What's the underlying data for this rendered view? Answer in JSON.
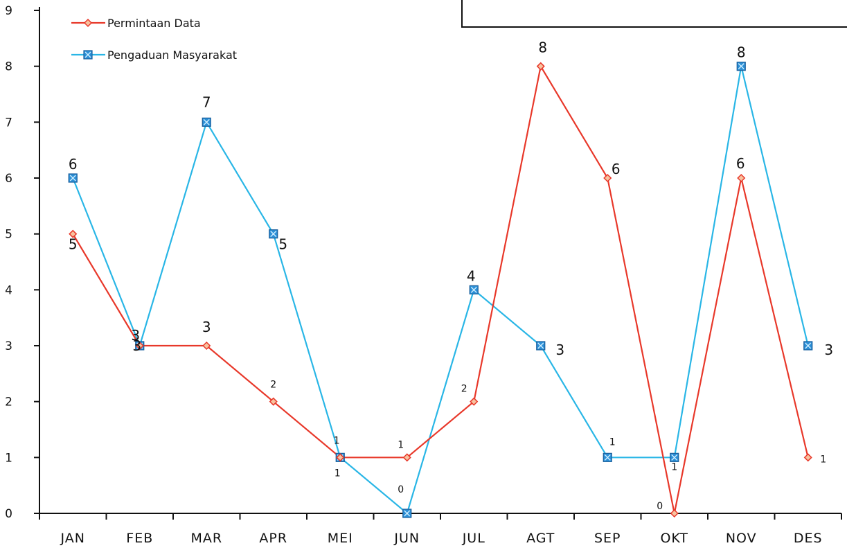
{
  "chart_data": {
    "type": "line",
    "categories": [
      "JAN",
      "FEB",
      "MAR",
      "APR",
      "MEI",
      "JUN",
      "JUL",
      "AGT",
      "SEP",
      "OKT",
      "NOV",
      "DES"
    ],
    "ylim": [
      0,
      9
    ],
    "yticks": [
      "0",
      "1",
      "2",
      "3",
      "4",
      "5",
      "6",
      "7",
      "8",
      "9"
    ],
    "grid": false,
    "legend_position": "top-left",
    "series": [
      {
        "name": "Permintaan Data",
        "color": "#e8382a",
        "marker": "diamond",
        "values": [
          5,
          3,
          3,
          2,
          1,
          1,
          2,
          8,
          6,
          0,
          6,
          1
        ],
        "labels": [
          "5",
          "3",
          "3",
          "2",
          "1",
          "1",
          "2",
          "8",
          "6",
          "0",
          "6",
          "1"
        ]
      },
      {
        "name": "Pengaduan Masyarakat",
        "color": "#29b6e6",
        "marker": "square",
        "values": [
          6,
          3,
          7,
          5,
          1,
          0,
          4,
          3,
          1,
          1,
          8,
          3
        ],
        "labels": [
          "6",
          "3",
          "7",
          "5",
          "1",
          "0",
          "4",
          "3",
          "1",
          "1",
          "8",
          "3"
        ]
      }
    ]
  }
}
